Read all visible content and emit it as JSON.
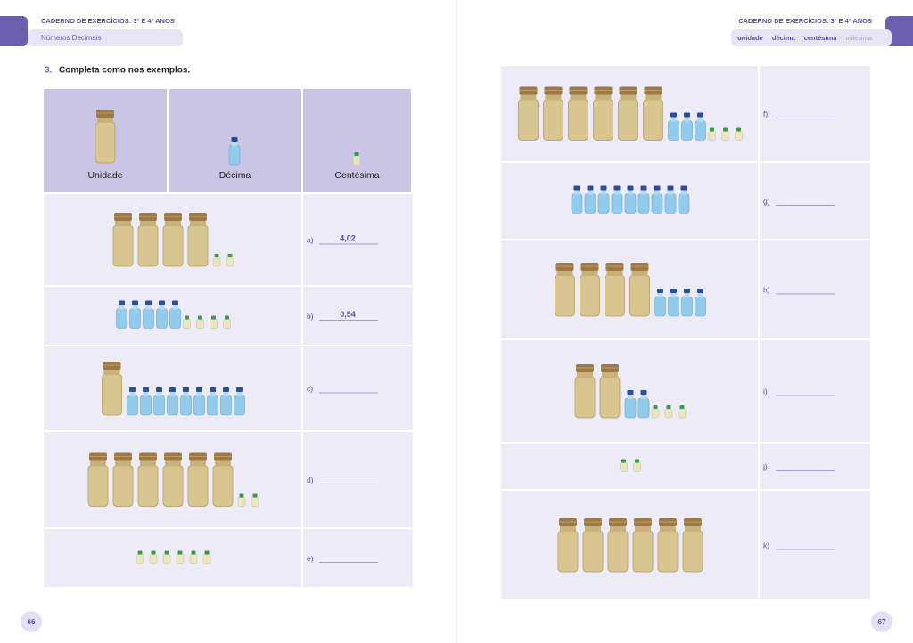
{
  "header_left": {
    "title": "CADERNO DE EXERCÍCIOS: 3º E 4º ANOS",
    "subtitle": "Números Decimais"
  },
  "header_right": {
    "title": "CADERNO DE EXERCÍCIOS: 3º E 4º ANOS",
    "tags": [
      "unidade",
      "décima",
      "centésima",
      "milésima"
    ]
  },
  "exercise": {
    "number": "3.",
    "instruction": "Completa como nos exemplos."
  },
  "table_left": {
    "headers": [
      "Unidade",
      "Décima",
      "Centésima"
    ],
    "rows": [
      {
        "label": "a)",
        "answer": "4,02"
      },
      {
        "label": "b)",
        "answer": "0,54"
      },
      {
        "label": "c)"
      },
      {
        "label": "d)"
      },
      {
        "label": "e)"
      }
    ]
  },
  "table_right": {
    "rows": [
      {
        "label": "f)"
      },
      {
        "label": "g)"
      },
      {
        "label": "h)"
      },
      {
        "label": "i)"
      },
      {
        "label": "j)"
      },
      {
        "label": "k)"
      }
    ]
  },
  "page_numbers": [
    "66",
    "67"
  ]
}
